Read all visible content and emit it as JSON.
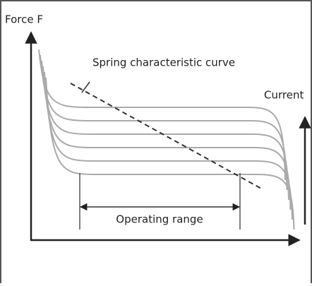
{
  "labels": {
    "y_axis": "Force F",
    "spring_curve": "Spring characteristic curve",
    "current": "Current",
    "operating_range": "Operating range"
  }
}
